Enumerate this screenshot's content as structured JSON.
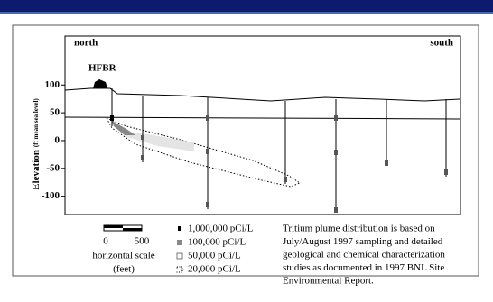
{
  "header": {
    "left": "north",
    "right": "south",
    "building": "HFBR"
  },
  "axis": {
    "label": "Elevation",
    "unit": "(ft mean sea level)",
    "ylim": [
      -133,
      188
    ],
    "yticks": [
      100,
      50,
      0,
      -50,
      -100
    ]
  },
  "scale": {
    "start": "0",
    "end": "500",
    "title": "horizontal scale",
    "unit": "(feet)"
  },
  "legend": [
    "1,000,000 pCi/L",
    "100,000 pCi/L",
    "50,000 pCi/L",
    "20,000 pCi/L"
  ],
  "note": [
    "Tritium plume distribution is based on",
    "July/August 1997 sampling and detailed",
    "geological and chemical characterization",
    "studies as documented in 1997 BNL Site",
    "Environmental Report."
  ]
}
